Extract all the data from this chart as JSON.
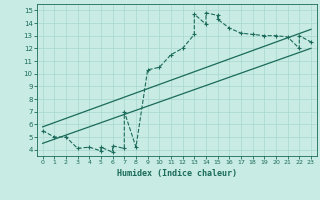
{
  "xlabel": "Humidex (Indice chaleur)",
  "xlim": [
    -0.5,
    23.5
  ],
  "ylim": [
    3.5,
    15.5
  ],
  "xticks": [
    0,
    1,
    2,
    3,
    4,
    5,
    6,
    7,
    8,
    9,
    10,
    11,
    12,
    13,
    14,
    15,
    16,
    17,
    18,
    19,
    20,
    21,
    22,
    23
  ],
  "yticks": [
    4,
    5,
    6,
    7,
    8,
    9,
    10,
    11,
    12,
    13,
    14,
    15
  ],
  "bg_color": "#c8ebe4",
  "line_color": "#1a6b5a",
  "grid_color": "#a8d8ce",
  "line_x": [
    0,
    1,
    2,
    3,
    4,
    5,
    5,
    6,
    6,
    7,
    7,
    8,
    9,
    10,
    11,
    12,
    13,
    13,
    14,
    14,
    15,
    15,
    16,
    17,
    18,
    19,
    20,
    21,
    22,
    22,
    23
  ],
  "line_y": [
    5.5,
    5.0,
    5.0,
    4.1,
    4.2,
    3.9,
    4.2,
    3.8,
    4.3,
    4.1,
    7.0,
    4.2,
    10.3,
    10.5,
    11.5,
    12.0,
    13.1,
    14.7,
    13.9,
    14.8,
    14.6,
    14.3,
    13.6,
    13.2,
    13.1,
    13.0,
    13.0,
    12.9,
    12.0,
    13.0,
    12.5
  ],
  "reg_line1_x": [
    0,
    23
  ],
  "reg_line1_y": [
    4.5,
    12.0
  ],
  "reg_line2_x": [
    0,
    23
  ],
  "reg_line2_y": [
    5.8,
    13.5
  ]
}
